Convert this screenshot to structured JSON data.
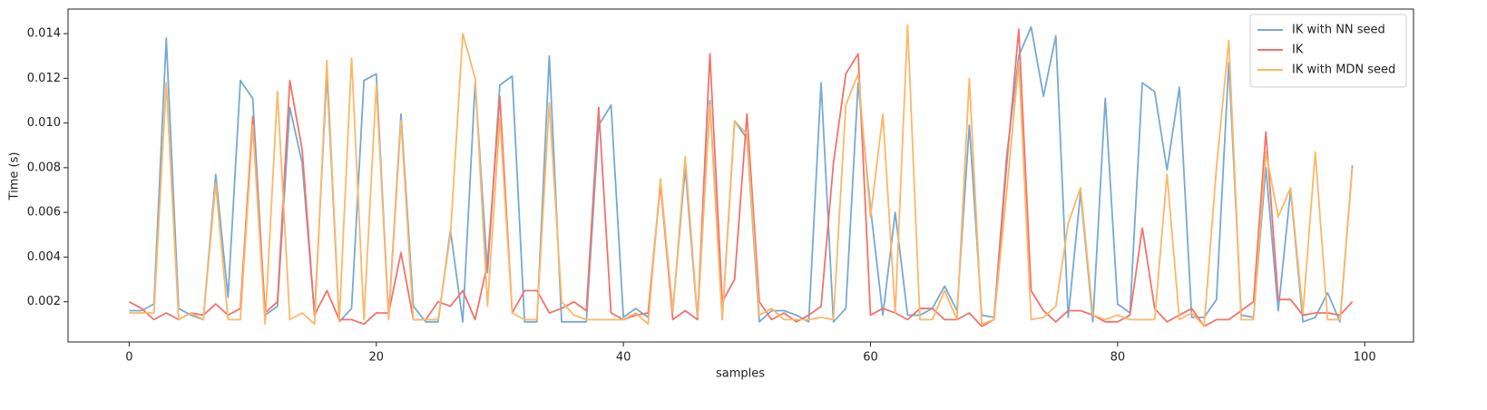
{
  "chart_data": {
    "type": "line",
    "xlabel": "samples",
    "ylabel": "Time (s)",
    "x": [
      0,
      1,
      2,
      3,
      4,
      5,
      6,
      7,
      8,
      9,
      10,
      11,
      12,
      13,
      14,
      15,
      16,
      17,
      18,
      19,
      20,
      21,
      22,
      23,
      24,
      25,
      26,
      27,
      28,
      29,
      30,
      31,
      32,
      33,
      34,
      35,
      36,
      37,
      38,
      39,
      40,
      41,
      42,
      43,
      44,
      45,
      46,
      47,
      48,
      49,
      50,
      51,
      52,
      53,
      54,
      55,
      56,
      57,
      58,
      59,
      60,
      61,
      62,
      63,
      64,
      65,
      66,
      67,
      68,
      69,
      70,
      71,
      72,
      73,
      74,
      75,
      76,
      77,
      78,
      79,
      80,
      81,
      82,
      83,
      84,
      85,
      86,
      87,
      88,
      89,
      90,
      91,
      92,
      93,
      94,
      95,
      96,
      97,
      98,
      99
    ],
    "series": [
      {
        "name": "IK with NN seed",
        "color": "#76aad3",
        "values": [
          0.0016,
          0.0016,
          0.0019,
          0.0138,
          0.0017,
          0.0014,
          0.0012,
          0.0077,
          0.0022,
          0.0119,
          0.0111,
          0.0014,
          0.0018,
          0.0107,
          0.0082,
          0.0014,
          0.0122,
          0.0011,
          0.0017,
          0.0119,
          0.0122,
          0.0013,
          0.0104,
          0.0018,
          0.0011,
          0.0011,
          0.0052,
          0.0011,
          0.0118,
          0.0033,
          0.0117,
          0.0121,
          0.0011,
          0.0011,
          0.013,
          0.0011,
          0.0011,
          0.0011,
          0.0099,
          0.0108,
          0.0013,
          0.0017,
          0.0013,
          0.0073,
          0.0016,
          0.008,
          0.0012,
          0.011,
          0.0012,
          0.0101,
          0.0093,
          0.0011,
          0.0016,
          0.0016,
          0.0014,
          0.0011,
          0.0118,
          0.0011,
          0.0017,
          0.0118,
          0.0062,
          0.0014,
          0.006,
          0.0014,
          0.0014,
          0.0017,
          0.0027,
          0.0016,
          0.0099,
          0.0014,
          0.0013,
          0.0084,
          0.013,
          0.0143,
          0.0112,
          0.0139,
          0.0013,
          0.0069,
          0.0011,
          0.0111,
          0.0019,
          0.0015,
          0.0118,
          0.0114,
          0.0079,
          0.0116,
          0.0013,
          0.0013,
          0.0021,
          0.0127,
          0.0014,
          0.0013,
          0.008,
          0.0016,
          0.007,
          0.0011,
          0.0013,
          0.0024,
          0.0011,
          0.0081
        ]
      },
      {
        "name": "IK",
        "color": "#f2736b",
        "values": [
          0.002,
          0.0017,
          0.0012,
          0.0015,
          0.0012,
          0.0015,
          0.0014,
          0.0019,
          0.0014,
          0.0017,
          0.0103,
          0.0015,
          0.002,
          0.0119,
          0.0088,
          0.0014,
          0.0025,
          0.0012,
          0.0012,
          0.001,
          0.0015,
          0.0015,
          0.0042,
          0.0012,
          0.0012,
          0.002,
          0.0018,
          0.0025,
          0.0012,
          0.0037,
          0.0112,
          0.0015,
          0.0025,
          0.0025,
          0.0015,
          0.0017,
          0.002,
          0.0016,
          0.0107,
          0.0015,
          0.0012,
          0.0014,
          0.0015,
          0.0073,
          0.0012,
          0.0016,
          0.0012,
          0.0131,
          0.002,
          0.003,
          0.0104,
          0.002,
          0.0012,
          0.0015,
          0.0011,
          0.0014,
          0.0018,
          0.0082,
          0.0122,
          0.0131,
          0.0014,
          0.0017,
          0.0015,
          0.0012,
          0.0017,
          0.0017,
          0.0012,
          0.0012,
          0.0015,
          0.0009,
          0.0012,
          0.008,
          0.0142,
          0.0025,
          0.0016,
          0.0011,
          0.0016,
          0.0016,
          0.0014,
          0.0011,
          0.0011,
          0.0014,
          0.0053,
          0.0017,
          0.0011,
          0.0014,
          0.0017,
          0.0009,
          0.0012,
          0.0012,
          0.0016,
          0.002,
          0.0096,
          0.0021,
          0.0021,
          0.0014,
          0.0015,
          0.0015,
          0.0014,
          0.002
        ]
      },
      {
        "name": "IK with MDN seed",
        "color": "#fdb766",
        "values": [
          0.0015,
          0.0015,
          0.0015,
          0.0118,
          0.0012,
          0.0015,
          0.0012,
          0.0073,
          0.0012,
          0.0012,
          0.0099,
          0.001,
          0.0114,
          0.0012,
          0.0015,
          0.001,
          0.0128,
          0.0011,
          0.0129,
          0.0012,
          0.0117,
          0.0012,
          0.0101,
          0.0012,
          0.0012,
          0.0012,
          0.005,
          0.014,
          0.012,
          0.0018,
          0.0102,
          0.0015,
          0.0012,
          0.0012,
          0.0109,
          0.002,
          0.0014,
          0.0012,
          0.0012,
          0.0012,
          0.0012,
          0.0015,
          0.001,
          0.0075,
          0.0015,
          0.0085,
          0.0013,
          0.0108,
          0.0012,
          0.0101,
          0.0095,
          0.0014,
          0.0017,
          0.0012,
          0.0012,
          0.0012,
          0.0013,
          0.0012,
          0.0108,
          0.0122,
          0.0058,
          0.0104,
          0.0015,
          0.0144,
          0.0012,
          0.0012,
          0.0025,
          0.0012,
          0.012,
          0.001,
          0.0012,
          0.0068,
          0.0127,
          0.0012,
          0.0013,
          0.0018,
          0.0055,
          0.0071,
          0.0014,
          0.0012,
          0.0014,
          0.0012,
          0.0012,
          0.0012,
          0.0077,
          0.0012,
          0.0015,
          0.0009,
          0.008,
          0.0137,
          0.0012,
          0.0012,
          0.0087,
          0.0058,
          0.0071,
          0.0015,
          0.0087,
          0.0012,
          0.0012,
          0.008
        ]
      }
    ],
    "xlim": [
      -4.95,
      103.95
    ],
    "ylim": [
      0.0002,
      0.0151
    ],
    "xticks": [
      0,
      20,
      40,
      60,
      80,
      100
    ],
    "yticks": [
      {
        "value": 0.002,
        "label": "0.002"
      },
      {
        "value": 0.004,
        "label": "0.004"
      },
      {
        "value": 0.006,
        "label": "0.006"
      },
      {
        "value": 0.008,
        "label": "0.008"
      },
      {
        "value": 0.01,
        "label": "0.010"
      },
      {
        "value": 0.012,
        "label": "0.012"
      },
      {
        "value": 0.014,
        "label": "0.014"
      }
    ],
    "grid": false,
    "legend": "upper right"
  }
}
